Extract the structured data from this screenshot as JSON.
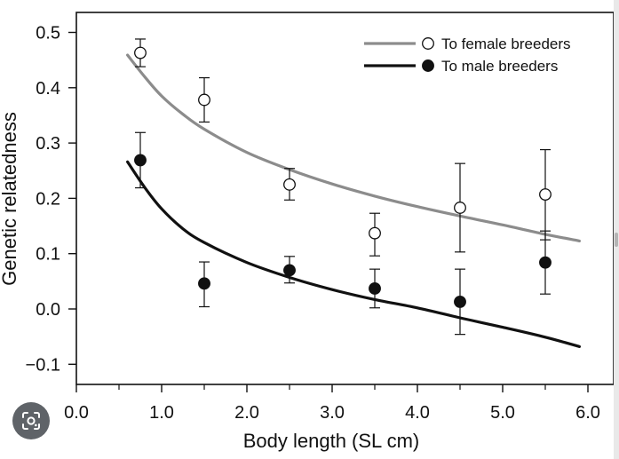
{
  "chart_data": {
    "type": "scatter",
    "title": "",
    "xlabel": "Body length (SL cm)",
    "ylabel": "Genetic relatedness",
    "xlim": [
      0.0,
      6.3
    ],
    "ylim": [
      -0.14,
      0.54
    ],
    "x_ticks": [
      0.0,
      1.0,
      2.0,
      3.0,
      4.0,
      5.0,
      6.0
    ],
    "x_tick_labels": [
      "0.0",
      "1.0",
      "2.0",
      "3.0",
      "4.0",
      "5.0",
      "6.0"
    ],
    "x_minor_ticks": [
      0.5,
      1.5,
      2.5,
      3.5,
      4.5,
      5.5
    ],
    "y_ticks": [
      -0.1,
      0.0,
      0.1,
      0.2,
      0.3,
      0.4,
      0.5
    ],
    "y_tick_labels": [
      "−0.1",
      "0.0",
      "0.1",
      "0.2",
      "0.3",
      "0.4",
      "0.5"
    ],
    "grid": false,
    "legend_position": "top-right",
    "series": [
      {
        "name": "To female breeders",
        "marker": "open-circle",
        "line_color": "#8c8c8c",
        "points": [
          {
            "x": 0.75,
            "y": 0.463,
            "err_low": 0.438,
            "err_high": 0.488
          },
          {
            "x": 1.5,
            "y": 0.378,
            "err_low": 0.338,
            "err_high": 0.418
          },
          {
            "x": 2.5,
            "y": 0.225,
            "err_low": 0.197,
            "err_high": 0.254
          },
          {
            "x": 3.5,
            "y": 0.137,
            "err_low": 0.096,
            "err_high": 0.173
          },
          {
            "x": 4.5,
            "y": 0.183,
            "err_low": 0.103,
            "err_high": 0.263
          },
          {
            "x": 5.5,
            "y": 0.207,
            "err_low": 0.125,
            "err_high": 0.288
          }
        ],
        "fit_curve": [
          [
            0.6,
            0.459
          ],
          [
            0.8,
            0.42
          ],
          [
            1.0,
            0.385
          ],
          [
            1.25,
            0.352
          ],
          [
            1.5,
            0.325
          ],
          [
            2.0,
            0.283
          ],
          [
            2.5,
            0.252
          ],
          [
            3.0,
            0.226
          ],
          [
            3.5,
            0.204
          ],
          [
            4.0,
            0.185
          ],
          [
            4.5,
            0.168
          ],
          [
            5.0,
            0.152
          ],
          [
            5.5,
            0.135
          ],
          [
            5.9,
            0.123
          ]
        ]
      },
      {
        "name": "To male breeders",
        "marker": "filled-circle",
        "line_color": "#111111",
        "points": [
          {
            "x": 0.75,
            "y": 0.269,
            "err_low": 0.219,
            "err_high": 0.319
          },
          {
            "x": 1.5,
            "y": 0.046,
            "err_low": 0.004,
            "err_high": 0.085
          },
          {
            "x": 2.5,
            "y": 0.07,
            "err_low": 0.047,
            "err_high": 0.095
          },
          {
            "x": 3.5,
            "y": 0.037,
            "err_low": 0.002,
            "err_high": 0.072
          },
          {
            "x": 4.5,
            "y": 0.013,
            "err_low": -0.046,
            "err_high": 0.072
          },
          {
            "x": 5.5,
            "y": 0.084,
            "err_low": 0.027,
            "err_high": 0.141
          }
        ],
        "fit_curve": [
          [
            0.6,
            0.266
          ],
          [
            0.8,
            0.22
          ],
          [
            1.0,
            0.181
          ],
          [
            1.25,
            0.145
          ],
          [
            1.5,
            0.12
          ],
          [
            2.0,
            0.084
          ],
          [
            2.5,
            0.057
          ],
          [
            3.0,
            0.035
          ],
          [
            3.5,
            0.017
          ],
          [
            4.0,
            0.002
          ],
          [
            4.5,
            -0.016
          ],
          [
            5.0,
            -0.033
          ],
          [
            5.5,
            -0.051
          ],
          [
            5.9,
            -0.068
          ]
        ]
      }
    ]
  },
  "ui": {
    "lens_button_label": "Search image",
    "icons": {
      "lens": "lens-icon"
    }
  }
}
